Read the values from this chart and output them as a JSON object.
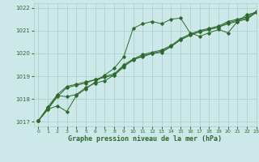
{
  "title": "Graphe pression niveau de la mer (hPa)",
  "bg_color": "#cce8e8",
  "line_color": "#2d6a2d",
  "grid_color": "#aacccc",
  "xlim": [
    -0.5,
    23
  ],
  "ylim": [
    1016.8,
    1022.2
  ],
  "yticks": [
    1017,
    1018,
    1019,
    1020,
    1021,
    1022
  ],
  "xtick_labels": [
    "0",
    "1",
    "2",
    "3",
    "4",
    "5",
    "6",
    "7",
    "8",
    "9",
    "10",
    "11",
    "12",
    "13",
    "14",
    "15",
    "16",
    "17",
    "18",
    "19",
    "20",
    "21",
    "22",
    "23"
  ],
  "series": [
    [
      1017.05,
      1017.55,
      1017.7,
      1017.45,
      1018.15,
      1018.45,
      1018.75,
      1019.05,
      1019.35,
      1019.85,
      1021.1,
      1021.3,
      1021.4,
      1021.3,
      1021.5,
      1021.55,
      1020.9,
      1020.75,
      1020.9,
      1021.05,
      1020.9,
      1021.4,
      1021.7,
      1021.8
    ],
    [
      1017.05,
      1017.6,
      1018.15,
      1018.1,
      1018.2,
      1018.5,
      1018.7,
      1018.8,
      1019.05,
      1019.4,
      1019.75,
      1019.85,
      1020.0,
      1020.05,
      1020.3,
      1020.6,
      1020.8,
      1020.95,
      1021.05,
      1021.15,
      1021.3,
      1021.4,
      1021.5,
      1021.8
    ],
    [
      1017.05,
      1017.55,
      1018.1,
      1018.5,
      1018.6,
      1018.7,
      1018.85,
      1018.95,
      1019.05,
      1019.45,
      1019.7,
      1019.9,
      1020.0,
      1020.1,
      1020.3,
      1020.6,
      1020.8,
      1020.95,
      1021.05,
      1021.15,
      1021.35,
      1021.45,
      1021.55,
      1021.8
    ],
    [
      1017.05,
      1017.65,
      1018.2,
      1018.55,
      1018.65,
      1018.75,
      1018.85,
      1019.0,
      1019.1,
      1019.5,
      1019.75,
      1019.95,
      1020.05,
      1020.15,
      1020.35,
      1020.65,
      1020.85,
      1021.0,
      1021.1,
      1021.2,
      1021.4,
      1021.5,
      1021.6,
      1021.85
    ]
  ]
}
